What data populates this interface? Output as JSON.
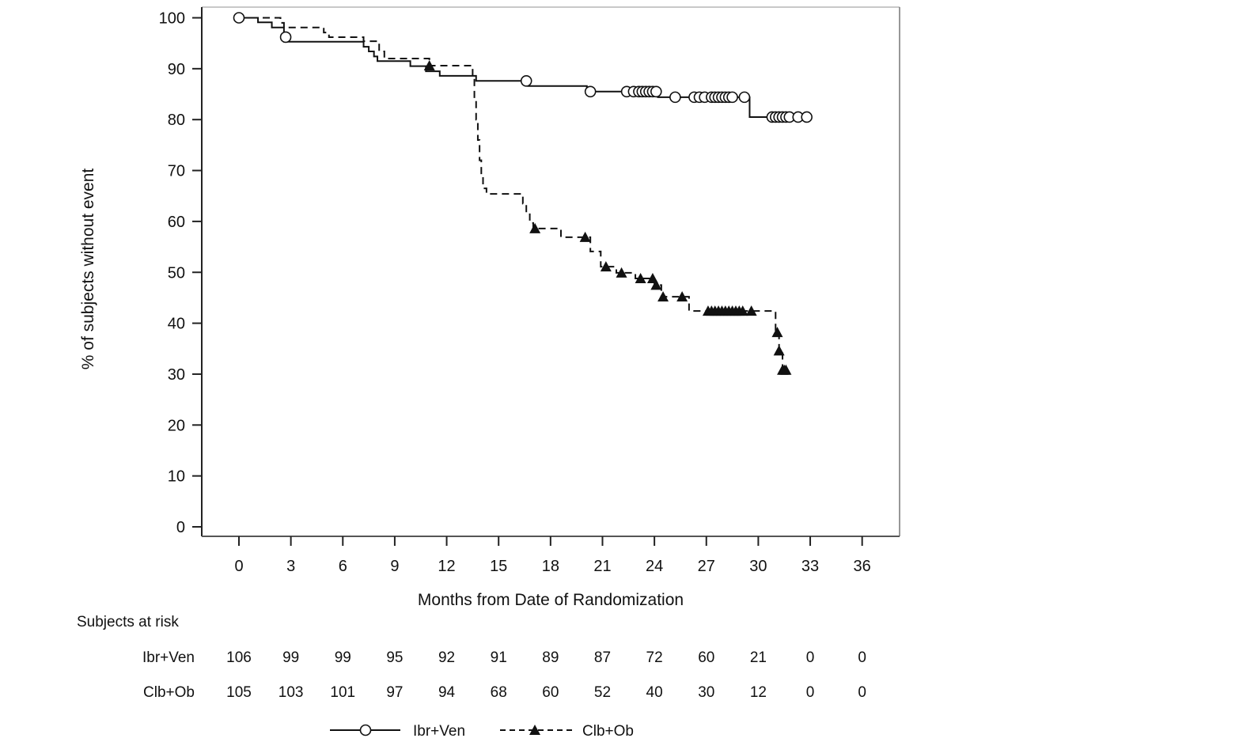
{
  "chart_data": {
    "type": "line",
    "subtype": "kaplan-meier step curve",
    "xlabel": "Months from Date of Randomization",
    "ylabel": "% of subjects without event",
    "xlim": [
      0,
      36
    ],
    "ylim": [
      0,
      100
    ],
    "xticks": [
      0,
      3,
      6,
      9,
      12,
      15,
      18,
      21,
      24,
      27,
      30,
      33,
      36
    ],
    "yticks": [
      0,
      10,
      20,
      30,
      40,
      50,
      60,
      70,
      80,
      90,
      100
    ],
    "grid": false,
    "legend_position": "bottom",
    "series": [
      {
        "name": "Ibr+Ven",
        "line_style": "solid",
        "marker": "open-circle",
        "color": "#111111",
        "steps": [
          [
            0,
            100
          ],
          [
            1.1,
            99.1
          ],
          [
            1.9,
            98.1
          ],
          [
            2.6,
            95.3
          ],
          [
            7.2,
            94.3
          ],
          [
            7.5,
            93.4
          ],
          [
            7.8,
            92.4
          ],
          [
            8.0,
            91.5
          ],
          [
            9.9,
            90.5
          ],
          [
            10.8,
            89.5
          ],
          [
            11.6,
            88.6
          ],
          [
            13.7,
            87.6
          ],
          [
            16.7,
            86.6
          ],
          [
            20.1,
            85.5
          ],
          [
            24.2,
            84.4
          ],
          [
            29.5,
            80.5
          ]
        ],
        "end_time": 32.9,
        "censored": [
          [
            0,
            100
          ],
          [
            2.7,
            96.2
          ],
          [
            16.6,
            87.6
          ],
          [
            20.3,
            85.5
          ],
          [
            22.4,
            85.5
          ],
          [
            22.8,
            85.5
          ],
          [
            23.1,
            85.5
          ],
          [
            23.3,
            85.5
          ],
          [
            23.5,
            85.5
          ],
          [
            23.7,
            85.5
          ],
          [
            23.9,
            85.5
          ],
          [
            24.1,
            85.5
          ],
          [
            25.2,
            84.4
          ],
          [
            26.3,
            84.4
          ],
          [
            26.6,
            84.4
          ],
          [
            26.9,
            84.4
          ],
          [
            27.3,
            84.4
          ],
          [
            27.5,
            84.4
          ],
          [
            27.7,
            84.4
          ],
          [
            27.9,
            84.4
          ],
          [
            28.1,
            84.4
          ],
          [
            28.3,
            84.4
          ],
          [
            28.5,
            84.4
          ],
          [
            29.2,
            84.4
          ],
          [
            30.8,
            80.5
          ],
          [
            31.0,
            80.5
          ],
          [
            31.2,
            80.5
          ],
          [
            31.4,
            80.5
          ],
          [
            31.6,
            80.5
          ],
          [
            31.8,
            80.5
          ],
          [
            32.3,
            80.5
          ],
          [
            32.8,
            80.5
          ]
        ]
      },
      {
        "name": "Clb+Ob",
        "line_style": "dashed",
        "marker": "filled-triangle",
        "color": "#111111",
        "steps": [
          [
            0,
            100
          ],
          [
            2.4,
            99.0
          ],
          [
            2.6,
            98.1
          ],
          [
            4.9,
            97.1
          ],
          [
            5.2,
            96.2
          ],
          [
            7.2,
            95.4
          ],
          [
            8.1,
            93.4
          ],
          [
            8.4,
            92.0
          ],
          [
            11.0,
            90.6
          ],
          [
            13.5,
            88.0
          ],
          [
            13.6,
            84.0
          ],
          [
            13.7,
            80.0
          ],
          [
            13.8,
            76.0
          ],
          [
            13.9,
            72.0
          ],
          [
            14.0,
            69.0
          ],
          [
            14.1,
            66.5
          ],
          [
            14.3,
            65.4
          ],
          [
            16.4,
            63.5
          ],
          [
            16.6,
            61.6
          ],
          [
            16.8,
            59.7
          ],
          [
            17.0,
            58.6
          ],
          [
            18.6,
            56.9
          ],
          [
            20.3,
            54.1
          ],
          [
            20.9,
            51.1
          ],
          [
            21.8,
            49.9
          ],
          [
            22.9,
            48.8
          ],
          [
            24.0,
            47.5
          ],
          [
            24.4,
            45.2
          ],
          [
            26.0,
            42.4
          ],
          [
            31.0,
            38.2
          ],
          [
            31.2,
            34.6
          ],
          [
            31.4,
            30.8
          ]
        ],
        "end_time": 31.6,
        "censored": [
          [
            11.0,
            90.6
          ],
          [
            17.1,
            58.6
          ],
          [
            20.0,
            56.9
          ],
          [
            21.2,
            51.1
          ],
          [
            22.1,
            49.9
          ],
          [
            23.2,
            48.8
          ],
          [
            23.9,
            48.8
          ],
          [
            24.1,
            47.5
          ],
          [
            24.5,
            45.2
          ],
          [
            25.6,
            45.2
          ],
          [
            27.1,
            42.4
          ],
          [
            27.3,
            42.4
          ],
          [
            27.5,
            42.4
          ],
          [
            27.7,
            42.4
          ],
          [
            27.9,
            42.4
          ],
          [
            28.1,
            42.4
          ],
          [
            28.3,
            42.4
          ],
          [
            28.5,
            42.4
          ],
          [
            28.7,
            42.4
          ],
          [
            28.9,
            42.4
          ],
          [
            29.1,
            42.4
          ],
          [
            29.6,
            42.4
          ],
          [
            31.1,
            38.2
          ],
          [
            31.2,
            34.6
          ],
          [
            31.4,
            30.8
          ],
          [
            31.5,
            30.8
          ],
          [
            31.6,
            30.8
          ]
        ]
      }
    ],
    "at_risk": {
      "title": "Subjects at risk",
      "rows": [
        {
          "label": "Ibr+Ven",
          "values": [
            "106",
            "99",
            "99",
            "95",
            "92",
            "91",
            "89",
            "87",
            "72",
            "60",
            "21",
            "0",
            "0"
          ]
        },
        {
          "label": "Clb+Ob",
          "values": [
            "105",
            "103",
            "101",
            "97",
            "94",
            "68",
            "60",
            "52",
            "40",
            "30",
            "12",
            "0",
            "0"
          ]
        }
      ]
    }
  }
}
